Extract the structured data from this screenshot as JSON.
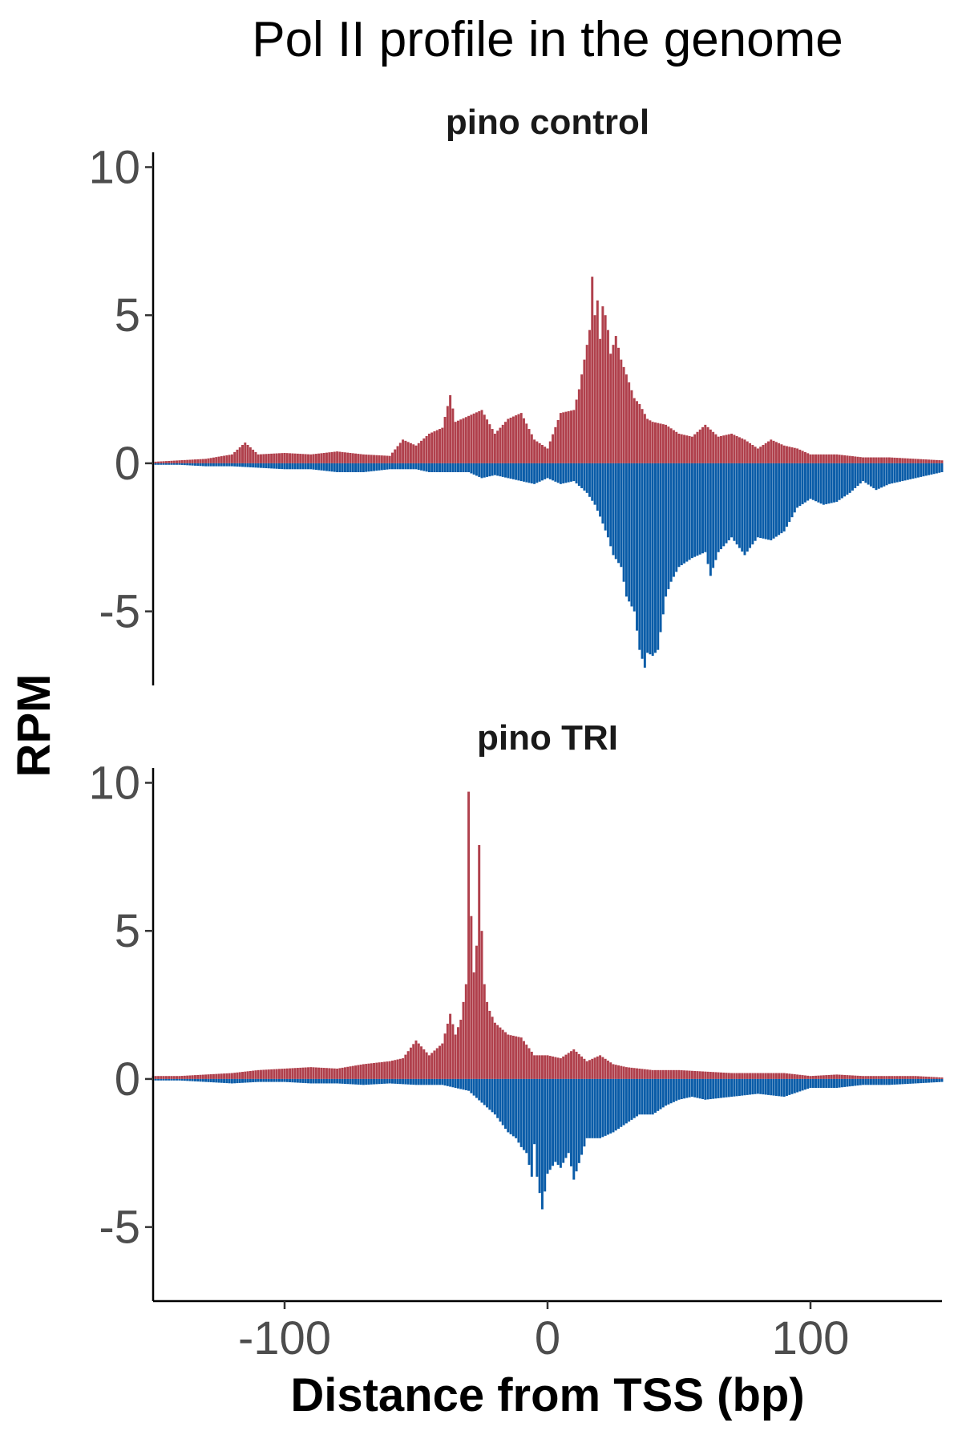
{
  "chart_data": {
    "type": "bar",
    "title": "Pol II profile in the genome",
    "xlabel": "Distance from TSS (bp)",
    "ylabel": "RPM",
    "xlim": [
      -150,
      150
    ],
    "ylim": [
      -7.5,
      10.5
    ],
    "x_ticks": [
      -100,
      0,
      100
    ],
    "x_tick_labels": [
      "-100",
      "0",
      "100"
    ],
    "y_ticks": [
      -5,
      0,
      5,
      10
    ],
    "y_tick_labels": [
      "-5",
      "0",
      "5",
      "10"
    ],
    "grid": false,
    "legend": "none",
    "colors": {
      "plus_strand": "#B0404C",
      "minus_strand": "#0A5CA8"
    },
    "panels": [
      {
        "name": "pino control",
        "series": [
          {
            "strand": "plus",
            "x": [
              -150,
              -140,
              -130,
              -120,
              -115,
              -110,
              -100,
              -90,
              -80,
              -70,
              -60,
              -55,
              -50,
              -45,
              -40,
              -37,
              -35,
              -30,
              -25,
              -20,
              -15,
              -10,
              -5,
              0,
              5,
              10,
              12,
              14,
              16,
              17,
              18,
              19,
              20,
              21,
              22,
              23,
              24,
              25,
              26,
              28,
              30,
              33,
              35,
              38,
              40,
              45,
              50,
              55,
              60,
              65,
              70,
              75,
              80,
              85,
              90,
              95,
              100,
              110,
              120,
              130,
              140,
              150
            ],
            "values": [
              0.05,
              0.1,
              0.15,
              0.3,
              0.7,
              0.3,
              0.35,
              0.3,
              0.4,
              0.3,
              0.25,
              0.8,
              0.6,
              1.0,
              1.2,
              2.3,
              1.4,
              1.6,
              1.8,
              1.0,
              1.5,
              1.7,
              0.8,
              0.5,
              1.7,
              1.8,
              2.5,
              3.5,
              4.5,
              6.3,
              5.0,
              5.5,
              4.2,
              5.3,
              5.0,
              4.5,
              3.7,
              4.0,
              4.3,
              3.5,
              3.0,
              2.2,
              2.0,
              1.5,
              1.4,
              1.3,
              1.0,
              0.9,
              1.3,
              0.9,
              1.0,
              0.8,
              0.5,
              0.8,
              0.6,
              0.5,
              0.3,
              0.3,
              0.2,
              0.2,
              0.15,
              0.1
            ]
          },
          {
            "strand": "minus",
            "x": [
              -150,
              -140,
              -130,
              -120,
              -110,
              -100,
              -90,
              -80,
              -70,
              -60,
              -50,
              -45,
              -40,
              -35,
              -30,
              -25,
              -20,
              -15,
              -10,
              -5,
              0,
              5,
              10,
              15,
              18,
              20,
              23,
              25,
              28,
              30,
              33,
              35,
              37,
              38,
              40,
              42,
              45,
              47,
              50,
              55,
              60,
              62,
              65,
              70,
              75,
              80,
              85,
              90,
              95,
              100,
              105,
              110,
              115,
              120,
              125,
              130,
              135,
              140,
              145,
              150
            ],
            "values": [
              -0.05,
              -0.05,
              -0.1,
              -0.1,
              -0.15,
              -0.2,
              -0.2,
              -0.3,
              -0.3,
              -0.2,
              -0.2,
              -0.3,
              -0.3,
              -0.3,
              -0.3,
              -0.5,
              -0.4,
              -0.5,
              -0.6,
              -0.7,
              -0.5,
              -0.7,
              -0.6,
              -1.0,
              -1.4,
              -1.8,
              -2.5,
              -3.1,
              -3.5,
              -4.5,
              -5.0,
              -6.3,
              -6.9,
              -6.4,
              -6.5,
              -6.3,
              -4.5,
              -4.0,
              -3.5,
              -3.2,
              -3.0,
              -3.8,
              -3.0,
              -2.5,
              -3.1,
              -2.5,
              -2.6,
              -2.3,
              -1.5,
              -1.2,
              -1.4,
              -1.3,
              -1.0,
              -0.6,
              -0.9,
              -0.7,
              -0.6,
              -0.5,
              -0.4,
              -0.3
            ]
          }
        ]
      },
      {
        "name": "pino TRI",
        "series": [
          {
            "strand": "plus",
            "x": [
              -150,
              -140,
              -130,
              -120,
              -110,
              -100,
              -90,
              -80,
              -70,
              -60,
              -55,
              -50,
              -45,
              -40,
              -37,
              -35,
              -33,
              -31,
              -30,
              -29,
              -28,
              -27,
              -26,
              -25,
              -24,
              -23,
              -22,
              -20,
              -15,
              -10,
              -5,
              0,
              5,
              10,
              15,
              20,
              25,
              30,
              40,
              50,
              60,
              70,
              80,
              90,
              100,
              110,
              120,
              130,
              140,
              150
            ],
            "values": [
              0.1,
              0.1,
              0.15,
              0.2,
              0.3,
              0.35,
              0.4,
              0.35,
              0.5,
              0.6,
              0.7,
              1.3,
              0.8,
              1.2,
              2.2,
              1.5,
              2.0,
              3.2,
              9.7,
              5.5,
              3.6,
              4.5,
              7.9,
              5.0,
              3.2,
              2.6,
              2.3,
              1.9,
              1.5,
              1.4,
              0.8,
              0.8,
              0.7,
              1.0,
              0.6,
              0.8,
              0.5,
              0.4,
              0.3,
              0.3,
              0.25,
              0.2,
              0.2,
              0.2,
              0.1,
              0.15,
              0.1,
              0.1,
              0.1,
              0.05
            ]
          },
          {
            "strand": "minus",
            "x": [
              -150,
              -140,
              -130,
              -120,
              -110,
              -100,
              -90,
              -80,
              -70,
              -60,
              -50,
              -40,
              -30,
              -25,
              -20,
              -15,
              -12,
              -10,
              -8,
              -6,
              -5,
              -4,
              -2,
              0,
              3,
              5,
              8,
              10,
              15,
              20,
              25,
              30,
              35,
              40,
              45,
              50,
              55,
              60,
              70,
              80,
              90,
              100,
              110,
              120,
              130,
              140,
              150
            ],
            "values": [
              -0.05,
              -0.05,
              -0.1,
              -0.15,
              -0.1,
              -0.1,
              -0.15,
              -0.15,
              -0.2,
              -0.15,
              -0.2,
              -0.2,
              -0.4,
              -0.8,
              -1.2,
              -1.8,
              -2.0,
              -2.3,
              -2.5,
              -3.3,
              -2.2,
              -3.3,
              -4.4,
              -3.2,
              -2.8,
              -3.0,
              -2.5,
              -3.4,
              -2.0,
              -2.0,
              -1.8,
              -1.5,
              -1.2,
              -1.2,
              -0.9,
              -0.7,
              -0.6,
              -0.7,
              -0.6,
              -0.5,
              -0.6,
              -0.3,
              -0.3,
              -0.2,
              -0.2,
              -0.15,
              -0.1
            ]
          }
        ]
      }
    ]
  }
}
